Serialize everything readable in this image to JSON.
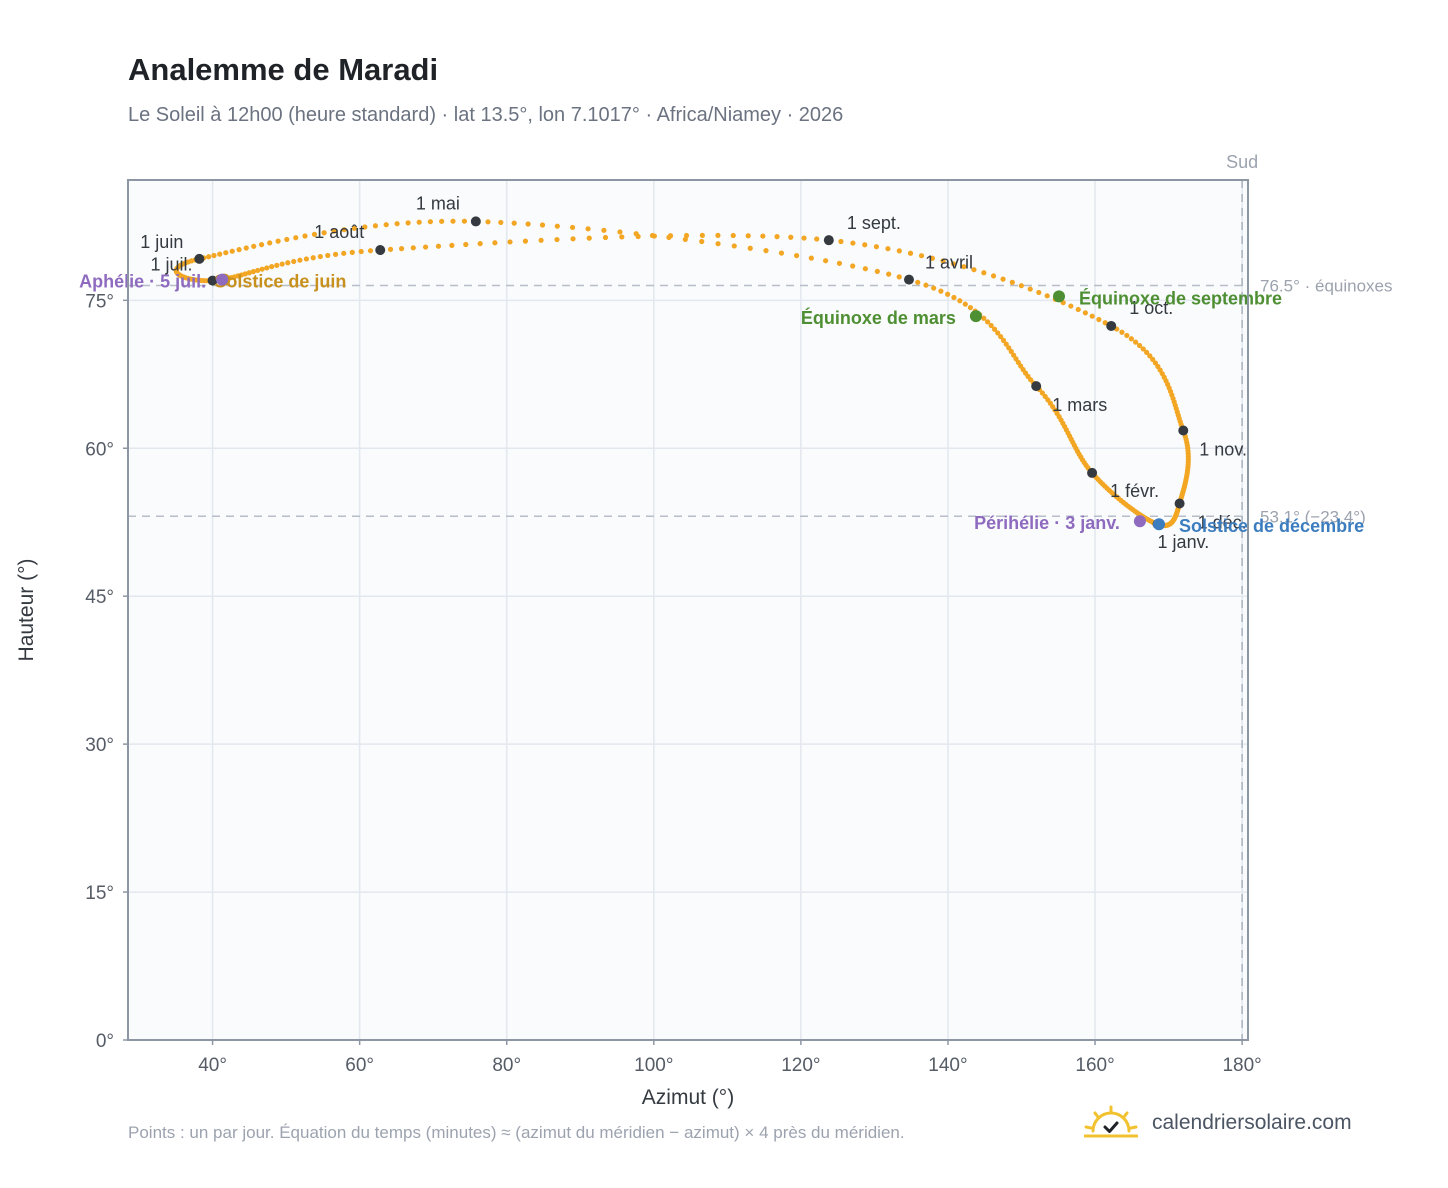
{
  "header": {
    "title": "Analemme de Maradi",
    "subtitle": "Le Soleil à 12h00 (heure standard) · lat 13.5°, lon 7.1017° · Africa/Niamey · 2026"
  },
  "footer": {
    "note": "Points : un par jour. Équation du temps (minutes) ≈ (azimut du méridien − azimut) × 4 près du méridien.",
    "brand": "calendriersolaire.com",
    "brand_icon": "sun-check-icon"
  },
  "colors": {
    "curve": "#f2a623",
    "month_marker": "#343a40",
    "equinox": "#4f8f33",
    "solstice_june": "#c8901c",
    "solstice_december": "#3c7dbf",
    "apsis": "#8e6bbf",
    "reference": "#9ca3af"
  },
  "chart_data": {
    "type": "scatter",
    "xlabel": "Azimut (°)",
    "ylabel": "Hauteur (°)",
    "xlim": [
      28.5,
      180.8
    ],
    "ylim": [
      0,
      87.2
    ],
    "xticks": [
      40,
      60,
      80,
      100,
      120,
      140,
      160,
      180
    ],
    "yticks": [
      0,
      15,
      30,
      45,
      60,
      75
    ],
    "x_tick_labels": [
      "40°",
      "60°",
      "80°",
      "100°",
      "120°",
      "140°",
      "160°",
      "180°"
    ],
    "y_tick_labels": [
      "0°",
      "15°",
      "30°",
      "45°",
      "60°",
      "75°"
    ],
    "grid": true,
    "meridian": {
      "azimuth": 180,
      "label": "Sud"
    },
    "reference_lines": [
      {
        "altitude": 76.5,
        "label": "76.5° · équinoxes"
      },
      {
        "altitude": 53.1,
        "label": "53.1° (−23.4°)"
      }
    ],
    "month_markers": [
      {
        "label": "1 janv.",
        "azimuth": 168.5,
        "altitude": 52.3
      },
      {
        "label": "1 févr.",
        "azimuth": 159.6,
        "altitude": 57.5
      },
      {
        "label": "1 mars",
        "azimuth": 152.0,
        "altitude": 66.3
      },
      {
        "label": "1 avril",
        "azimuth": 134.7,
        "altitude": 77.1
      },
      {
        "label": "1 mai",
        "azimuth": 75.8,
        "altitude": 83.0
      },
      {
        "label": "1 juin",
        "azimuth": 38.2,
        "altitude": 79.2
      },
      {
        "label": "1 juil.",
        "azimuth": 40.0,
        "altitude": 77.0
      },
      {
        "label": "1 août",
        "azimuth": 62.8,
        "altitude": 80.1
      },
      {
        "label": "1 sept.",
        "azimuth": 123.8,
        "altitude": 81.1
      },
      {
        "label": "1 oct.",
        "azimuth": 162.2,
        "altitude": 72.4
      },
      {
        "label": "1 nov.",
        "azimuth": 172.0,
        "altitude": 61.8
      },
      {
        "label": "1 déc.",
        "azimuth": 171.5,
        "altitude": 54.4
      }
    ],
    "events": [
      {
        "label": "Équinoxe de mars",
        "azimuth": 143.8,
        "altitude": 73.4,
        "type": "equinox"
      },
      {
        "label": "Équinoxe de septembre",
        "azimuth": 155.1,
        "altitude": 75.4,
        "type": "equinox"
      },
      {
        "label": "Solstice de juin",
        "azimuth": 41.6,
        "altitude": 77.1,
        "type": "solstice_june"
      },
      {
        "label": "Solstice de décembre",
        "azimuth": 168.7,
        "altitude": 52.3,
        "type": "solstice_december"
      },
      {
        "label": "Aphélie · 5 juil.",
        "azimuth": 41.3,
        "altitude": 77.1,
        "type": "apsis"
      },
      {
        "label": "Périhélie · 3 janv.",
        "azimuth": 166.1,
        "altitude": 52.6,
        "type": "apsis"
      }
    ]
  }
}
